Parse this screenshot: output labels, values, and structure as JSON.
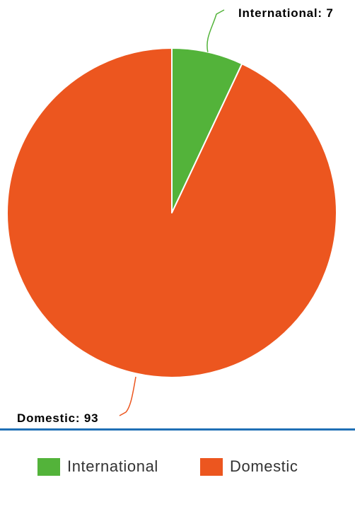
{
  "chart_data": {
    "type": "pie",
    "slices": [
      {
        "label": "International",
        "value": 7,
        "color": "#53b33a",
        "data_label": "International: 7"
      },
      {
        "label": "Domestic",
        "value": 93,
        "color": "#ec561f",
        "data_label": "Domestic: 93"
      }
    ],
    "legend_position": "bottom"
  },
  "legend": {
    "items": [
      {
        "label": "International",
        "color": "#53b33a"
      },
      {
        "label": "Domestic",
        "color": "#ec561f"
      }
    ]
  }
}
